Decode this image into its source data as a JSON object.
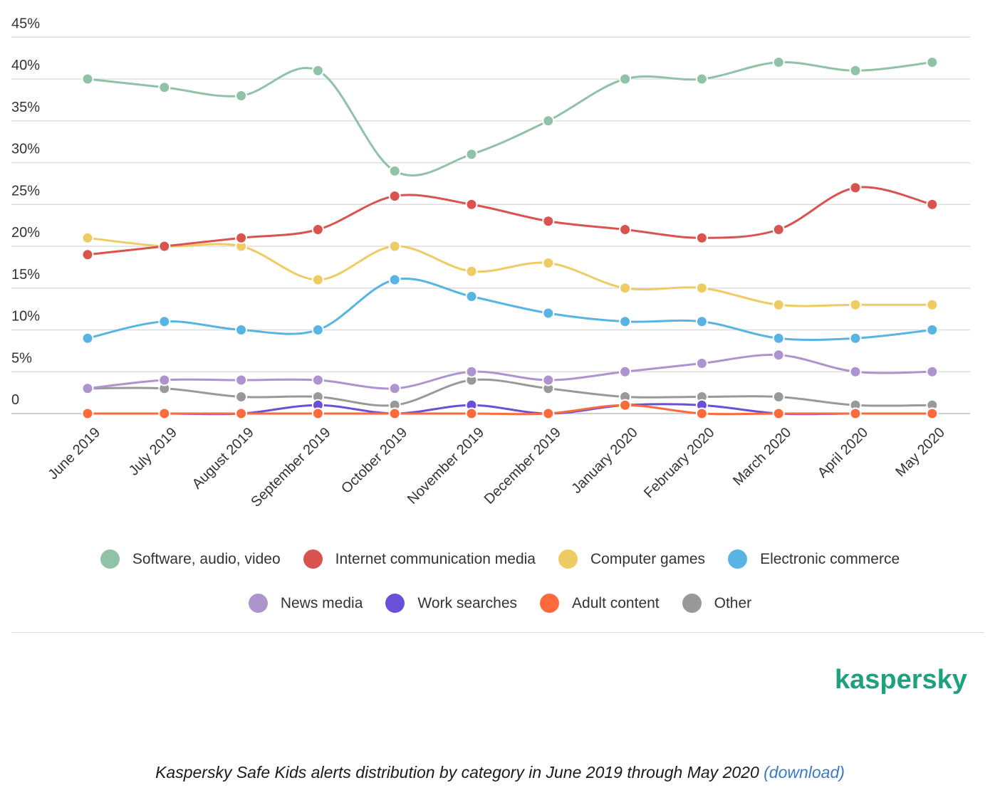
{
  "chart_data": {
    "type": "line",
    "title": "",
    "xlabel": "",
    "ylabel": "",
    "ylim": [
      0,
      45
    ],
    "yticks": [
      0,
      5,
      10,
      15,
      20,
      25,
      30,
      35,
      40,
      45
    ],
    "ytick_labels": [
      "0",
      "5%",
      "10%",
      "15%",
      "20%",
      "25%",
      "30%",
      "35%",
      "40%",
      "45%"
    ],
    "grid": true,
    "legend_position": "bottom",
    "categories": [
      "June 2019",
      "July 2019",
      "August 2019",
      "September 2019",
      "October 2019",
      "November 2019",
      "December 2019",
      "January 2020",
      "February 2020",
      "March 2020",
      "April 2020",
      "May 2020"
    ],
    "series": [
      {
        "name": "Software, audio, video",
        "color": "#8fc2a6",
        "values": [
          40,
          39,
          38,
          41,
          29,
          31,
          35,
          40,
          40,
          42,
          41,
          42
        ]
      },
      {
        "name": "Internet communication media",
        "color": "#d9534f",
        "values": [
          19,
          20,
          21,
          22,
          26,
          25,
          23,
          22,
          21,
          22,
          27,
          25
        ]
      },
      {
        "name": "Computer games",
        "color": "#eecb63",
        "values": [
          21,
          20,
          20,
          16,
          20,
          17,
          18,
          15,
          15,
          13,
          13,
          13
        ]
      },
      {
        "name": "Electronic commerce",
        "color": "#58b4e2",
        "values": [
          9,
          11,
          10,
          10,
          16,
          14,
          12,
          11,
          11,
          9,
          9,
          10
        ]
      },
      {
        "name": "News media",
        "color": "#ad94cf",
        "values": [
          3,
          4,
          4,
          4,
          3,
          5,
          4,
          5,
          6,
          7,
          5,
          5
        ]
      },
      {
        "name": "Work searches",
        "color": "#6a4fd8",
        "values": [
          0,
          0,
          0,
          1,
          0,
          1,
          0,
          1,
          1,
          0,
          0,
          0
        ]
      },
      {
        "name": "Adult content",
        "color": "#ff6a3d",
        "values": [
          0,
          0,
          0,
          0,
          0,
          0,
          0,
          1,
          0,
          0,
          0,
          0
        ]
      },
      {
        "name": "Other",
        "color": "#999999",
        "values": [
          3,
          3,
          2,
          2,
          1,
          4,
          3,
          2,
          2,
          2,
          1,
          1
        ]
      }
    ]
  },
  "brand": "kaspersky",
  "caption": {
    "text": "Kaspersky Safe Kids alerts distribution by category in June 2019 through May 2020 ",
    "link": "(download)"
  }
}
